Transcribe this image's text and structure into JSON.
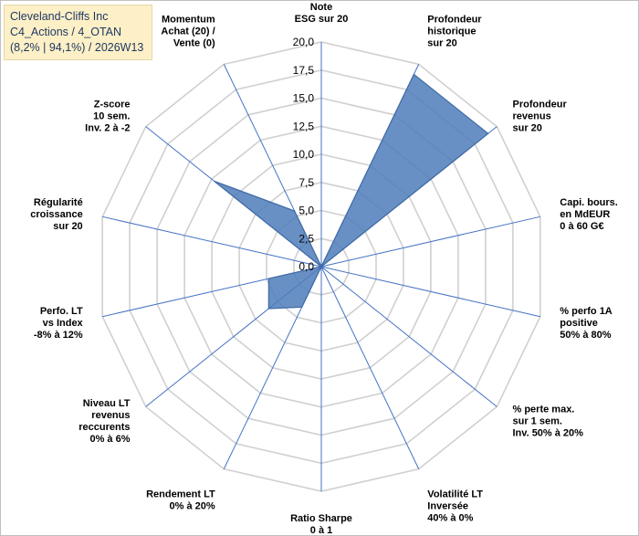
{
  "info": {
    "line1": "Cleveland-Cliffs Inc",
    "line2": "C4_Actions / 4_OTAN",
    "line3": "(8,2% | 94,1%) / 2026W13"
  },
  "chart_data": {
    "type": "radar",
    "title": "",
    "rlim": [
      0,
      20
    ],
    "tick_labels": [
      "0,0",
      "2,5",
      "5,0",
      "7,5",
      "10,0",
      "12,5",
      "15,0",
      "17,5",
      "20,0"
    ],
    "grid": true,
    "colors": {
      "fill": "#4f7cba",
      "stroke": "#3f6aa6",
      "axis": "#4472c4",
      "grid": "#d0d0d0"
    },
    "categories": [
      [
        "Note",
        "ESG sur 20"
      ],
      [
        "Profondeur",
        "historique",
        "sur 20"
      ],
      [
        "Profondeur",
        "revenus",
        "sur 20"
      ],
      [
        "Capi. bours.",
        "en MdEUR",
        "0 à 60 G€"
      ],
      [
        "% perfo 1A",
        "positive",
        "50% à 80%"
      ],
      [
        "% perte max.",
        "sur 1 sem.",
        "Inv. 50% à 20%"
      ],
      [
        "Volatilité LT",
        "Inversée",
        "40% à 0%"
      ],
      [
        "Ratio Sharpe",
        "0 à 1"
      ],
      [
        "Rendement LT",
        "0% à 20%"
      ],
      [
        "Niveau LT",
        "revenus",
        "reccurents",
        "0% à 6%"
      ],
      [
        "Perfo. LT",
        "vs Index",
        "-8% à 12%"
      ],
      [
        "Régularité",
        "croissance",
        "sur 20"
      ],
      [
        "Z-score",
        "10 sem.",
        "Inv. 2 à -2"
      ],
      [
        "Momentum",
        "Achat (20) /",
        "Vente (0)"
      ]
    ],
    "series": [
      {
        "values": [
          0,
          19,
          19,
          0,
          0,
          0,
          0,
          0,
          4,
          6,
          4.8,
          0,
          12.2,
          5.5
        ]
      }
    ]
  }
}
